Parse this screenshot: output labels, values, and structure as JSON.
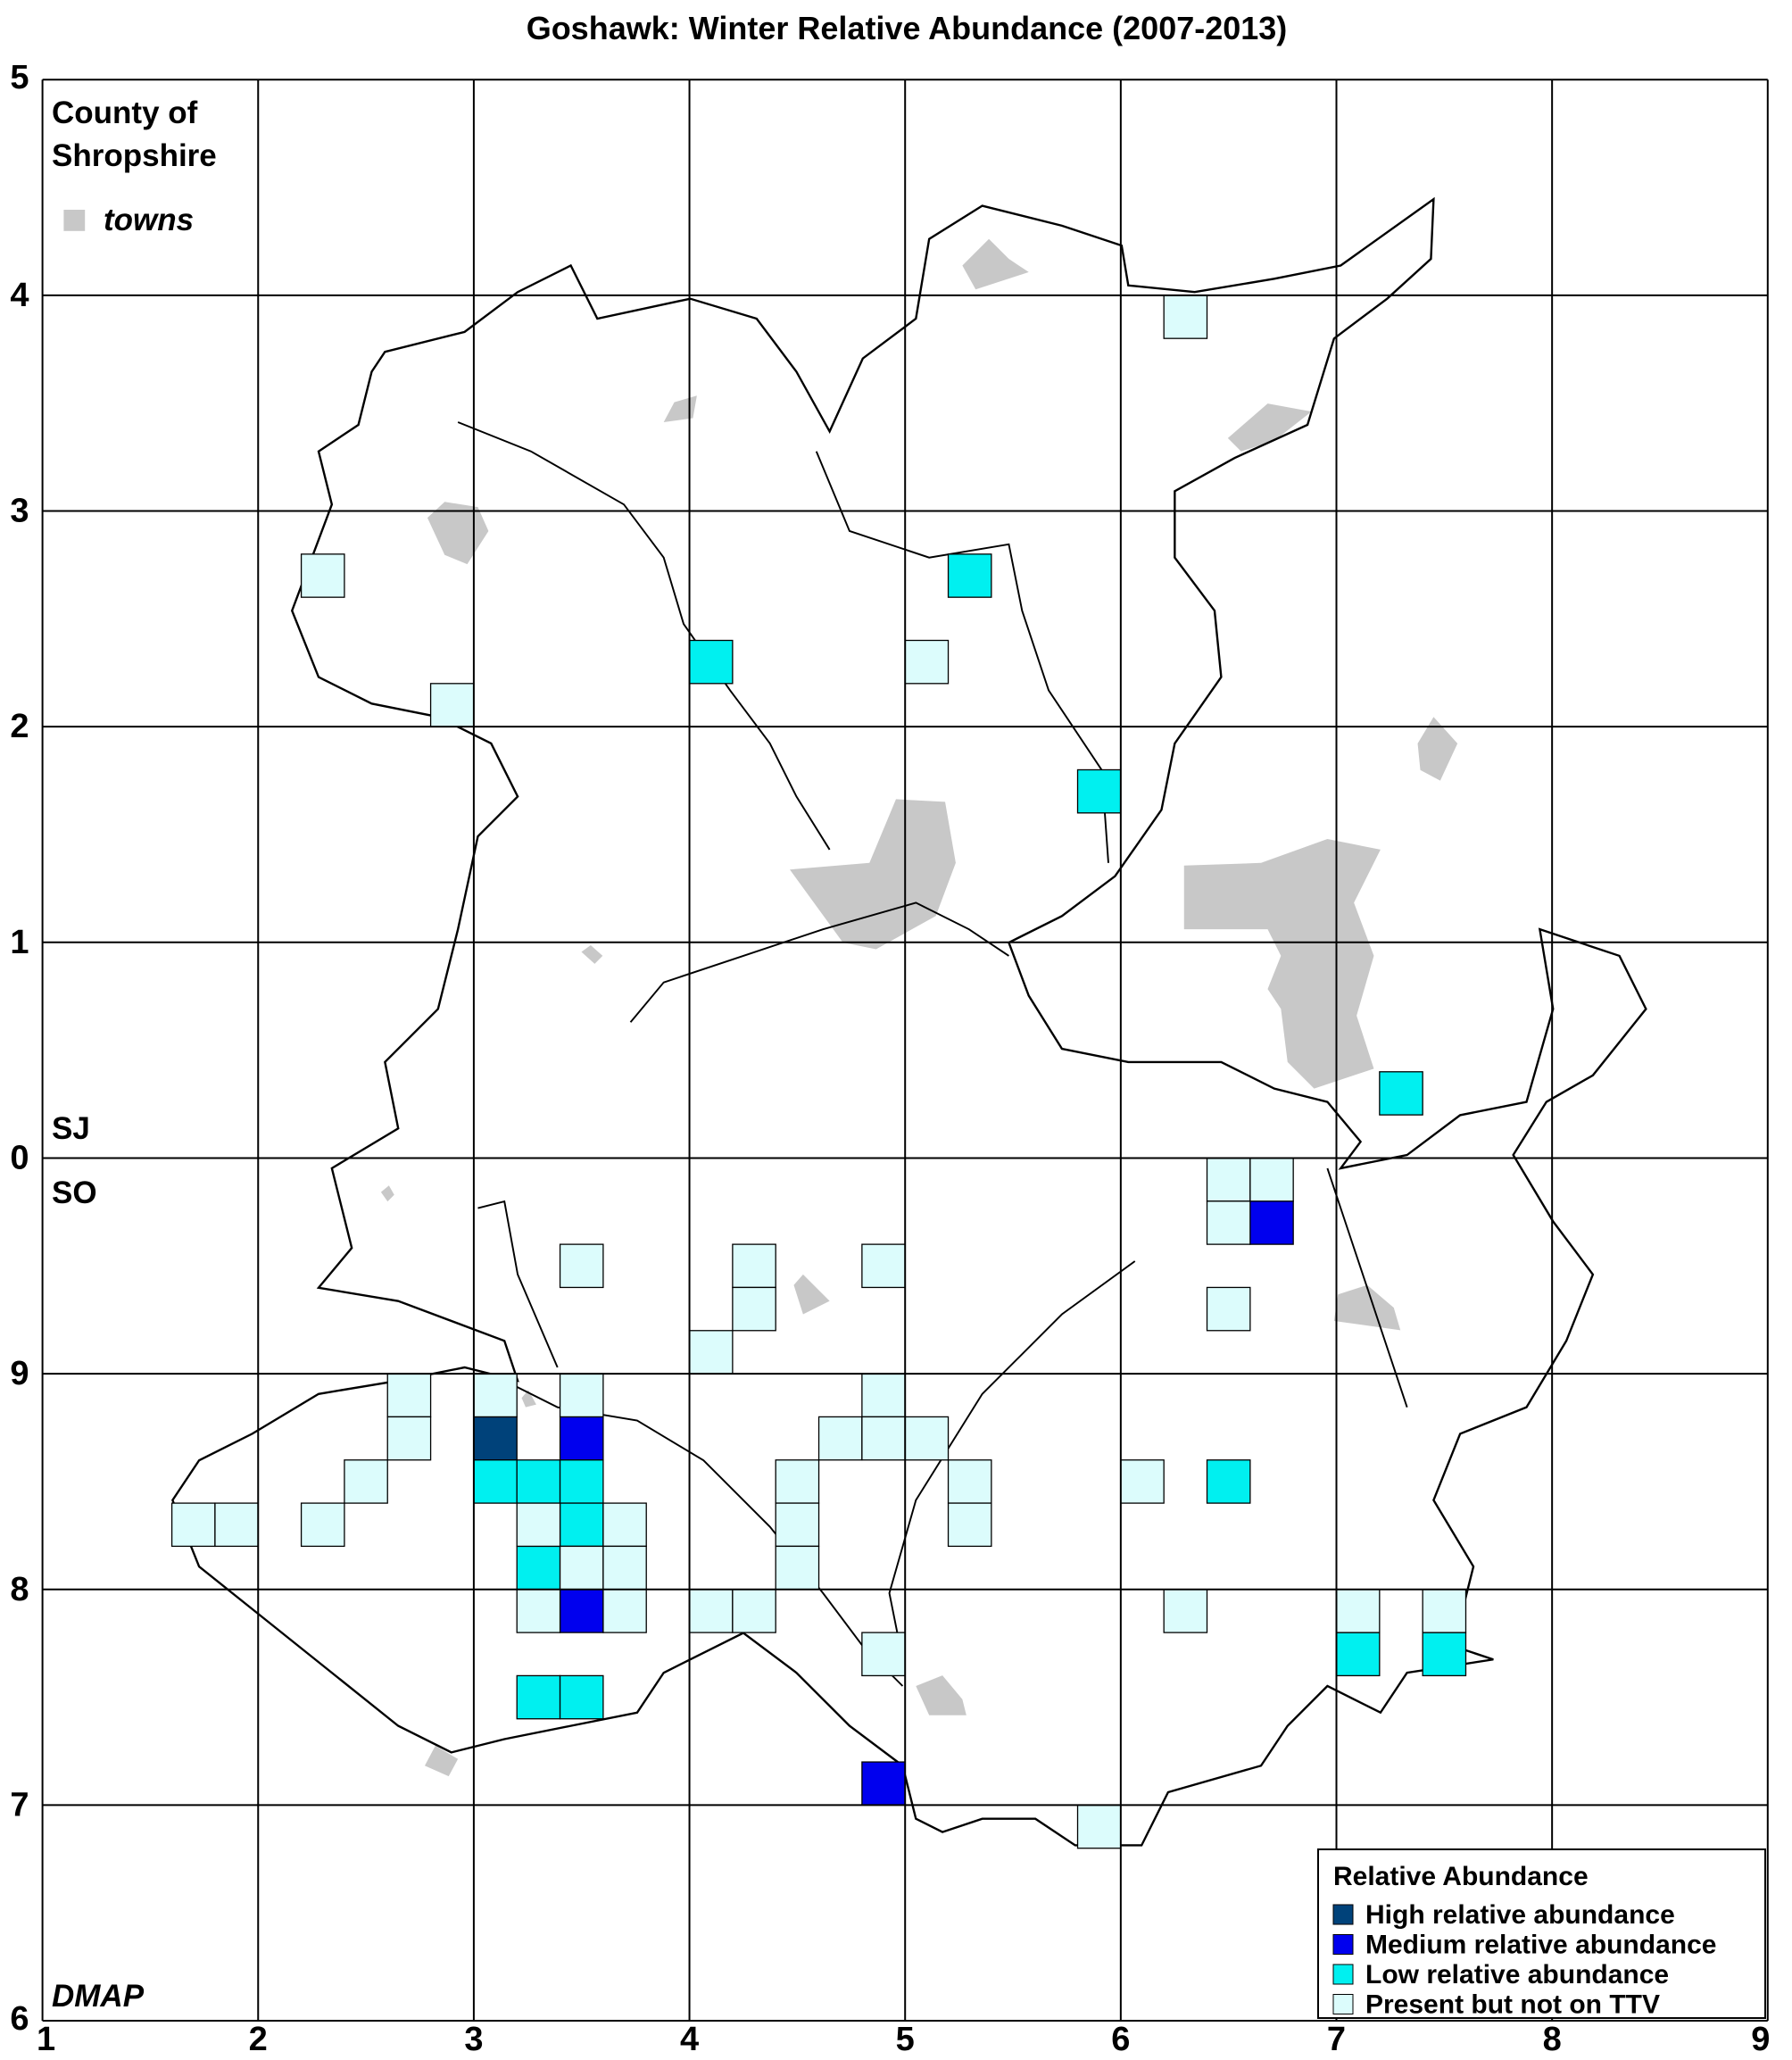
{
  "title": "Goshawk: Winter Relative Abundance (2007-2013)",
  "x_labels": [
    "1",
    "2",
    "3",
    "4",
    "5",
    "6",
    "7",
    "8",
    "9"
  ],
  "y_labels": [
    "5",
    "4",
    "3",
    "2",
    "1",
    "0",
    "9",
    "8",
    "7",
    "6"
  ],
  "annotations": {
    "county": [
      "County of",
      "Shropshire"
    ],
    "towns": "towns",
    "north_square": "SJ",
    "south_square": "SO",
    "credit": "DMAP"
  },
  "legend": {
    "title": "Relative Abundance",
    "items": [
      {
        "label": "High relative abundance",
        "color": "#00427a",
        "squares": [
          [
            2.0,
            2.6
          ]
        ]
      },
      {
        "label": "Medium relative abundance",
        "color": "#0000ee",
        "squares": [
          [
            5.6,
            3.6
          ],
          [
            2.4,
            2.6
          ],
          [
            2.4,
            1.8
          ],
          [
            3.8,
            1.0
          ]
        ]
      },
      {
        "label": "Low relative abundance",
        "color": "#00f0f0",
        "squares": [
          [
            3.0,
            6.2
          ],
          [
            4.2,
            6.6
          ],
          [
            4.8,
            5.6
          ],
          [
            6.2,
            4.2
          ],
          [
            2.0,
            2.4
          ],
          [
            2.2,
            2.4
          ],
          [
            2.4,
            2.4
          ],
          [
            2.4,
            2.2
          ],
          [
            2.2,
            2.0
          ],
          [
            2.2,
            1.4
          ],
          [
            2.4,
            1.4
          ],
          [
            5.4,
            2.4
          ],
          [
            6.0,
            1.6
          ],
          [
            6.4,
            1.6
          ]
        ]
      },
      {
        "label": "Present but not on TTV",
        "color": "#dcfcfc",
        "squares": [
          [
            1.2,
            6.6
          ],
          [
            1.8,
            6.0
          ],
          [
            4.0,
            6.2
          ],
          [
            5.2,
            7.8
          ],
          [
            5.4,
            3.8
          ],
          [
            5.6,
            3.8
          ],
          [
            5.4,
            3.6
          ],
          [
            5.4,
            3.2
          ],
          [
            2.4,
            3.4
          ],
          [
            3.2,
            3.4
          ],
          [
            3.2,
            3.2
          ],
          [
            3.0,
            3.0
          ],
          [
            3.8,
            3.4
          ],
          [
            1.6,
            2.8
          ],
          [
            1.6,
            2.6
          ],
          [
            1.4,
            2.4
          ],
          [
            1.2,
            2.2
          ],
          [
            0.6,
            2.2
          ],
          [
            0.8,
            2.2
          ],
          [
            2.0,
            2.8
          ],
          [
            2.4,
            2.8
          ],
          [
            2.2,
            2.2
          ],
          [
            2.6,
            2.2
          ],
          [
            2.4,
            2.0
          ],
          [
            2.6,
            2.0
          ],
          [
            2.2,
            1.8
          ],
          [
            2.6,
            1.8
          ],
          [
            3.8,
            2.8
          ],
          [
            3.6,
            2.6
          ],
          [
            3.8,
            2.6
          ],
          [
            4.0,
            2.6
          ],
          [
            3.4,
            2.4
          ],
          [
            3.4,
            2.2
          ],
          [
            3.4,
            2.0
          ],
          [
            4.2,
            2.4
          ],
          [
            4.2,
            2.2
          ],
          [
            3.0,
            1.8
          ],
          [
            3.2,
            1.8
          ],
          [
            3.8,
            1.6
          ],
          [
            4.8,
            0.8
          ],
          [
            5.0,
            2.4
          ],
          [
            5.2,
            1.8
          ],
          [
            6.0,
            1.8
          ],
          [
            6.4,
            1.8
          ]
        ]
      }
    ]
  }
}
